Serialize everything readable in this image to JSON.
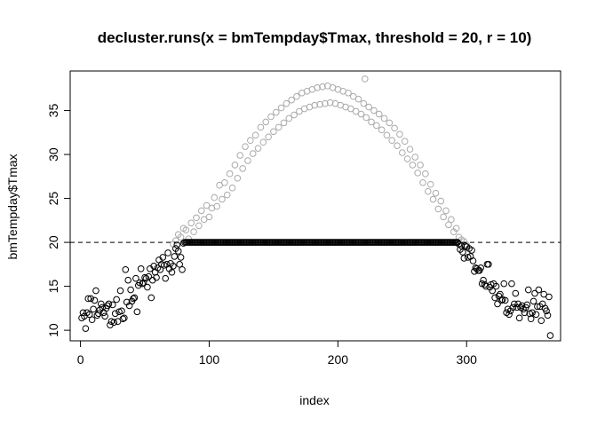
{
  "chart_data": {
    "type": "scatter",
    "title": "decluster.runs(x = bmTempday$Tmax, threshold = 20, r = 10)",
    "xlabel": "index",
    "ylabel": "bmTempday$Tmax",
    "xlim": [
      -8,
      373
    ],
    "ylim": [
      8.8,
      39.5
    ],
    "xticks": [
      0,
      100,
      200,
      300
    ],
    "yticks": [
      10,
      15,
      20,
      25,
      30,
      35
    ],
    "threshold": 20,
    "threshold_line": "dashed",
    "grid": false,
    "legend": "none",
    "series": [
      {
        "style": "open-circle",
        "color": "#000000",
        "points": [
          [
            1,
            11.4
          ],
          [
            2,
            12.0
          ],
          [
            3,
            11.6
          ],
          [
            4,
            10.2
          ],
          [
            5,
            12.0
          ],
          [
            6,
            13.6
          ],
          [
            7,
            11.8
          ],
          [
            8,
            13.6
          ],
          [
            9,
            11.2
          ],
          [
            10,
            12.4
          ],
          [
            11,
            13.4
          ],
          [
            12,
            14.5
          ],
          [
            13,
            11.7
          ],
          [
            14,
            11.9
          ],
          [
            15,
            12.3
          ],
          [
            16,
            13.0
          ],
          [
            17,
            12.6
          ],
          [
            18,
            12.0
          ],
          [
            19,
            11.6
          ],
          [
            20,
            12.5
          ],
          [
            21,
            12.8
          ],
          [
            22,
            13.0
          ],
          [
            23,
            10.6
          ],
          [
            24,
            11.0
          ],
          [
            25,
            12.9
          ],
          [
            26,
            10.9
          ],
          [
            27,
            11.9
          ],
          [
            28,
            13.5
          ],
          [
            29,
            11.0
          ],
          [
            30,
            12.1
          ],
          [
            31,
            14.5
          ],
          [
            32,
            12.2
          ],
          [
            33,
            11.3
          ],
          [
            34,
            11.4
          ],
          [
            35,
            16.9
          ],
          [
            36,
            13.2
          ],
          [
            37,
            15.7
          ],
          [
            38,
            12.8
          ],
          [
            39,
            14.6
          ],
          [
            40,
            13.3
          ],
          [
            41,
            13.6
          ],
          [
            42,
            13.7
          ],
          [
            43,
            15.9
          ],
          [
            44,
            12.1
          ],
          [
            45,
            15.1
          ],
          [
            46,
            15.4
          ],
          [
            47,
            17.0
          ],
          [
            48,
            15.3
          ],
          [
            49,
            15.4
          ],
          [
            50,
            16.0
          ],
          [
            51,
            15.9
          ],
          [
            52,
            14.9
          ],
          [
            53,
            16.1
          ],
          [
            54,
            17.0
          ],
          [
            55,
            13.7
          ],
          [
            56,
            15.7
          ],
          [
            57,
            17.3
          ],
          [
            58,
            16.6
          ],
          [
            59,
            16.0
          ],
          [
            60,
            17.1
          ],
          [
            61,
            18.0
          ],
          [
            62,
            16.9
          ],
          [
            63,
            17.5
          ],
          [
            64,
            18.3
          ],
          [
            65,
            17.4
          ],
          [
            66,
            15.9
          ],
          [
            67,
            17.5
          ],
          [
            68,
            18.8
          ],
          [
            69,
            17.0
          ],
          [
            70,
            17.6
          ],
          [
            71,
            16.6
          ],
          [
            72,
            17.3
          ],
          [
            73,
            18.4
          ],
          [
            74,
            19.3
          ],
          [
            75,
            19.7
          ],
          [
            76,
            19.0
          ],
          [
            77,
            17.5
          ],
          [
            78,
            18.3
          ],
          [
            79,
            16.9
          ],
          [
            80,
            19.9
          ],
          [
            294,
            19.8
          ],
          [
            295,
            19.2
          ],
          [
            296,
            19.6
          ],
          [
            297,
            18.9
          ],
          [
            298,
            18.2
          ],
          [
            299,
            19.6
          ],
          [
            300,
            19.5
          ],
          [
            301,
            18.3
          ],
          [
            302,
            19.3
          ],
          [
            303,
            18.4
          ],
          [
            304,
            19.1
          ],
          [
            305,
            17.9
          ],
          [
            306,
            16.7
          ],
          [
            307,
            17.1
          ],
          [
            308,
            17.0
          ],
          [
            309,
            16.8
          ],
          [
            310,
            16.8
          ],
          [
            311,
            17.1
          ],
          [
            312,
            15.3
          ],
          [
            313,
            15.7
          ],
          [
            314,
            15.2
          ],
          [
            315,
            15.0
          ],
          [
            316,
            17.5
          ],
          [
            317,
            17.5
          ],
          [
            318,
            14.9
          ],
          [
            319,
            15.2
          ],
          [
            320,
            14.5
          ],
          [
            321,
            15.3
          ],
          [
            322,
            13.7
          ],
          [
            323,
            15.0
          ],
          [
            324,
            13.0
          ],
          [
            325,
            13.9
          ],
          [
            326,
            14.1
          ],
          [
            327,
            13.4
          ],
          [
            328,
            13.5
          ],
          [
            329,
            15.3
          ],
          [
            330,
            13.4
          ],
          [
            331,
            12.0
          ],
          [
            332,
            12.4
          ],
          [
            333,
            11.8
          ],
          [
            334,
            12.2
          ],
          [
            335,
            15.3
          ],
          [
            336,
            12.6
          ],
          [
            337,
            13.0
          ],
          [
            338,
            14.2
          ],
          [
            339,
            12.6
          ],
          [
            340,
            13.0
          ],
          [
            341,
            11.4
          ],
          [
            342,
            12.6
          ],
          [
            343,
            12.8
          ],
          [
            344,
            12.4
          ],
          [
            345,
            12.0
          ],
          [
            346,
            12.6
          ],
          [
            347,
            12.9
          ],
          [
            348,
            14.6
          ],
          [
            349,
            11.9
          ],
          [
            350,
            11.3
          ],
          [
            351,
            12.0
          ],
          [
            352,
            13.3
          ],
          [
            353,
            14.2
          ],
          [
            354,
            11.8
          ],
          [
            355,
            12.7
          ],
          [
            356,
            14.6
          ],
          [
            357,
            12.7
          ],
          [
            358,
            11.1
          ],
          [
            359,
            13.0
          ],
          [
            360,
            14.1
          ],
          [
            361,
            12.5
          ],
          [
            362,
            12.2
          ],
          [
            363,
            11.7
          ],
          [
            364,
            13.8
          ],
          [
            365,
            9.4
          ]
        ]
      },
      {
        "style": "open-circle",
        "color": "#aaaaaa",
        "points": [
          [
            72,
            19.8
          ],
          [
            74,
            20.2
          ],
          [
            76,
            20.9
          ],
          [
            78,
            20.6
          ],
          [
            80,
            21.6
          ],
          [
            82,
            21.4
          ],
          [
            84,
            20.4
          ],
          [
            86,
            22.2
          ],
          [
            88,
            21.2
          ],
          [
            90,
            22.8
          ],
          [
            92,
            21.9
          ],
          [
            94,
            23.6
          ],
          [
            96,
            22.6
          ],
          [
            98,
            24.2
          ],
          [
            100,
            22.9
          ],
          [
            102,
            23.9
          ],
          [
            104,
            25.1
          ],
          [
            106,
            24.1
          ],
          [
            108,
            26.5
          ],
          [
            110,
            24.9
          ],
          [
            112,
            26.8
          ],
          [
            114,
            25.4
          ],
          [
            116,
            27.8
          ],
          [
            118,
            26.2
          ],
          [
            120,
            28.8
          ],
          [
            122,
            27.3
          ],
          [
            124,
            29.9
          ],
          [
            126,
            28.4
          ],
          [
            128,
            30.9
          ],
          [
            130,
            29.3
          ],
          [
            132,
            31.6
          ],
          [
            134,
            30.1
          ],
          [
            136,
            32.2
          ],
          [
            138,
            30.7
          ],
          [
            140,
            33.1
          ],
          [
            142,
            31.4
          ],
          [
            144,
            33.7
          ],
          [
            146,
            32.0
          ],
          [
            148,
            34.3
          ],
          [
            150,
            32.6
          ],
          [
            152,
            34.8
          ],
          [
            154,
            33.1
          ],
          [
            156,
            35.3
          ],
          [
            158,
            33.6
          ],
          [
            160,
            35.8
          ],
          [
            162,
            34.1
          ],
          [
            164,
            36.2
          ],
          [
            166,
            34.5
          ],
          [
            168,
            36.6
          ],
          [
            170,
            34.9
          ],
          [
            172,
            37.0
          ],
          [
            174,
            35.2
          ],
          [
            176,
            37.2
          ],
          [
            178,
            35.4
          ],
          [
            180,
            37.4
          ],
          [
            182,
            35.6
          ],
          [
            184,
            37.6
          ],
          [
            186,
            35.7
          ],
          [
            188,
            37.7
          ],
          [
            190,
            35.8
          ],
          [
            192,
            37.8
          ],
          [
            194,
            35.9
          ],
          [
            196,
            37.6
          ],
          [
            198,
            35.8
          ],
          [
            200,
            37.4
          ],
          [
            202,
            35.6
          ],
          [
            204,
            37.2
          ],
          [
            206,
            35.4
          ],
          [
            208,
            37.0
          ],
          [
            210,
            35.2
          ],
          [
            212,
            36.6
          ],
          [
            214,
            34.9
          ],
          [
            216,
            36.3
          ],
          [
            218,
            34.6
          ],
          [
            220,
            35.8
          ],
          [
            221,
            38.6
          ],
          [
            222,
            34.2
          ],
          [
            224,
            35.4
          ],
          [
            226,
            33.7
          ],
          [
            228,
            35.0
          ],
          [
            230,
            33.3
          ],
          [
            232,
            34.6
          ],
          [
            234,
            32.8
          ],
          [
            236,
            34.1
          ],
          [
            238,
            32.2
          ],
          [
            240,
            33.6
          ],
          [
            242,
            31.6
          ],
          [
            244,
            33.0
          ],
          [
            246,
            31.0
          ],
          [
            248,
            32.3
          ],
          [
            250,
            30.2
          ],
          [
            252,
            31.5
          ],
          [
            254,
            29.5
          ],
          [
            256,
            30.6
          ],
          [
            258,
            28.8
          ],
          [
            260,
            29.7
          ],
          [
            262,
            27.9
          ],
          [
            264,
            28.8
          ],
          [
            266,
            26.8
          ],
          [
            268,
            27.8
          ],
          [
            270,
            25.8
          ],
          [
            272,
            26.6
          ],
          [
            274,
            24.9
          ],
          [
            276,
            25.6
          ],
          [
            278,
            23.8
          ],
          [
            280,
            24.7
          ],
          [
            282,
            22.9
          ],
          [
            284,
            23.6
          ],
          [
            286,
            22.0
          ],
          [
            288,
            22.6
          ],
          [
            290,
            21.2
          ],
          [
            292,
            21.6
          ],
          [
            294,
            20.6
          ],
          [
            296,
            20.3
          ],
          [
            298,
            20.1
          ],
          [
            300,
            19.7
          ]
        ]
      }
    ]
  }
}
